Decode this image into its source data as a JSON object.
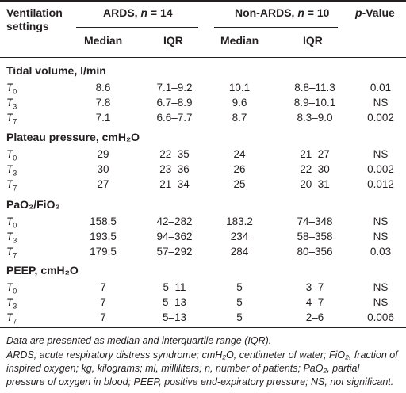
{
  "header": {
    "row_label_line1": "Ventilation",
    "row_label_line2": "settings",
    "group1_prefix": "ARDS, ",
    "group1_n": "n",
    "group1_suffix": " = 14",
    "group2_prefix": "Non-ARDS, ",
    "group2_n": "n",
    "group2_suffix": " = 10",
    "pvalue_p": "p",
    "pvalue_suffix": "-Value",
    "median": "Median",
    "iqr": "IQR"
  },
  "sections": [
    {
      "title": "Tidal volume, l/min",
      "rows": [
        {
          "t": "T",
          "sub": "0",
          "ards_median": "8.6",
          "ards_iqr": "7.1–9.2",
          "non_median": "10.1",
          "non_iqr": "8.8–11.3",
          "p": "0.01"
        },
        {
          "t": "T",
          "sub": "3",
          "ards_median": "7.8",
          "ards_iqr": "6.7–8.9",
          "non_median": "9.6",
          "non_iqr": "8.9–10.1",
          "p": "NS"
        },
        {
          "t": "T",
          "sub": "7",
          "ards_median": "7.1",
          "ards_iqr": "6.6–7.7",
          "non_median": "8.7",
          "non_iqr": "8.3–9.0",
          "p": "0.002"
        }
      ]
    },
    {
      "title": "Plateau pressure, cmH₂O",
      "rows": [
        {
          "t": "T",
          "sub": "0",
          "ards_median": "29",
          "ards_iqr": "22–35",
          "non_median": "24",
          "non_iqr": "21–27",
          "p": "NS"
        },
        {
          "t": "T",
          "sub": "3",
          "ards_median": "30",
          "ards_iqr": "23–36",
          "non_median": "26",
          "non_iqr": "22–30",
          "p": "0.002"
        },
        {
          "t": "T",
          "sub": "7",
          "ards_median": "27",
          "ards_iqr": "21–34",
          "non_median": "25",
          "non_iqr": "20–31",
          "p": "0.012"
        }
      ]
    },
    {
      "title": "PaO₂/FiO₂",
      "rows": [
        {
          "t": "T",
          "sub": "0",
          "ards_median": "158.5",
          "ards_iqr": "42–282",
          "non_median": "183.2",
          "non_iqr": "74–348",
          "p": "NS"
        },
        {
          "t": "T",
          "sub": "3",
          "ards_median": "193.5",
          "ards_iqr": "94–362",
          "non_median": "234",
          "non_iqr": "58–358",
          "p": "NS"
        },
        {
          "t": "T",
          "sub": "7",
          "ards_median": "179.5",
          "ards_iqr": "57–292",
          "non_median": "284",
          "non_iqr": "80–356",
          "p": "0.03"
        }
      ]
    },
    {
      "title": "PEEP, cmH₂O",
      "rows": [
        {
          "t": "T",
          "sub": "0",
          "ards_median": "7",
          "ards_iqr": "5–11",
          "non_median": "5",
          "non_iqr": "3–7",
          "p": "NS"
        },
        {
          "t": "T",
          "sub": "3",
          "ards_median": "7",
          "ards_iqr": "5–13",
          "non_median": "5",
          "non_iqr": "4–7",
          "p": "NS"
        },
        {
          "t": "T",
          "sub": "7",
          "ards_median": "7",
          "ards_iqr": "5–13",
          "non_median": "5",
          "non_iqr": "2–6",
          "p": "0.006"
        }
      ]
    }
  ],
  "footnotes": {
    "line1": "Data are presented as median and interquartile range (IQR).",
    "line2": "ARDS, acute respiratory distress syndrome; cmH₂O, centimeter of water; FiO₂, fraction of inspired oxygen; kg, kilograms; ml, milliliters; n, number of patients; PaO₂, partial pressure of oxygen in blood; PEEP, positive end-expiratory pressure; NS, not significant."
  }
}
